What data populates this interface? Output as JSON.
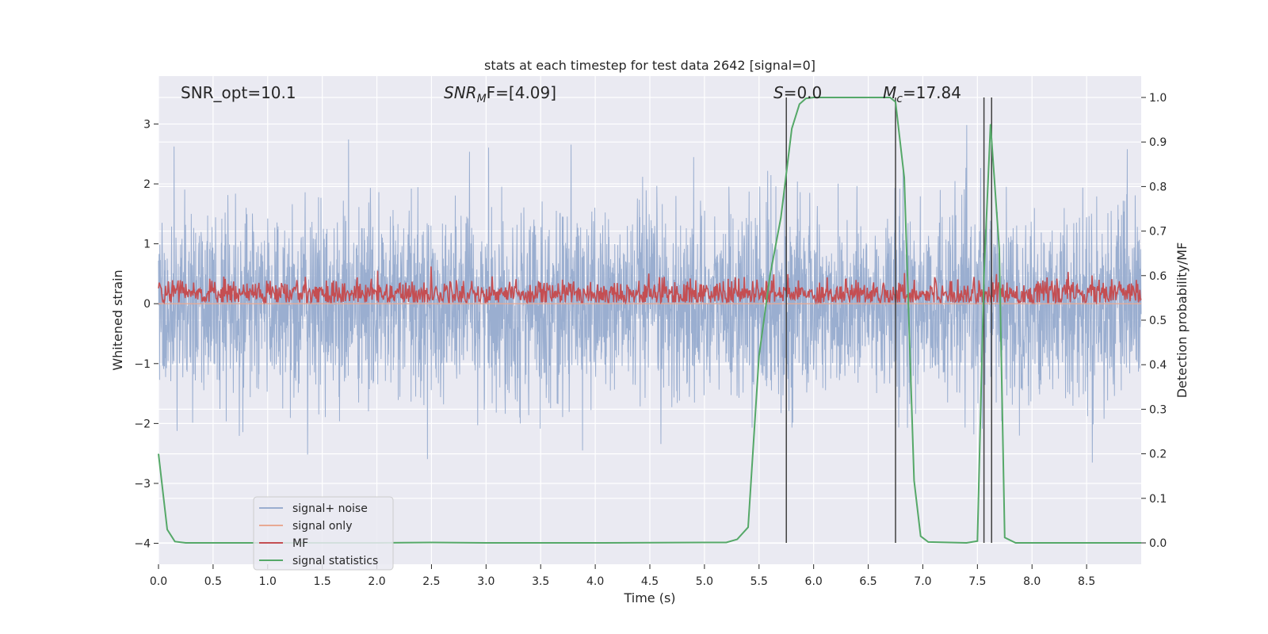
{
  "chart_data": {
    "type": "line",
    "title": "stats at each timestep for test data 2642 [signal=0]",
    "xlabel": "Time (s)",
    "ylabel": "Whitened strain",
    "y2label": "Detection probability/MF",
    "xlim": [
      0.0,
      9.0
    ],
    "ylim": [
      -4.35,
      3.8
    ],
    "y2lim": [
      -0.048,
      1.048
    ],
    "xticks": [
      0.0,
      0.5,
      1.0,
      1.5,
      2.0,
      2.5,
      3.0,
      3.5,
      4.0,
      4.5,
      5.0,
      5.5,
      6.0,
      6.5,
      7.0,
      7.5,
      8.0,
      8.5
    ],
    "xtick_labels": [
      "0.0",
      "0.5",
      "1.0",
      "1.5",
      "2.0",
      "2.5",
      "3.0",
      "3.5",
      "4.0",
      "4.5",
      "5.0",
      "5.5",
      "6.0",
      "6.5",
      "7.0",
      "7.5",
      "8.0",
      "8.5"
    ],
    "yticks": [
      -4,
      -3,
      -2,
      -1,
      0,
      1,
      2,
      3
    ],
    "ytick_labels": [
      "−4",
      "−3",
      "−2",
      "−1",
      "0",
      "1",
      "2",
      "3"
    ],
    "y2ticks": [
      0.0,
      0.1,
      0.2,
      0.3,
      0.4,
      0.5,
      0.6,
      0.7,
      0.8,
      0.9,
      1.0
    ],
    "y2tick_labels": [
      "0.0",
      "0.1",
      "0.2",
      "0.3",
      "0.4",
      "0.5",
      "0.6",
      "0.7",
      "0.8",
      "0.9",
      "1.0"
    ],
    "grid": true,
    "legend_position": "bottom-left",
    "annotations": {
      "snr_opt": "SNR_opt=10.1",
      "snr_mf_label": "SNR",
      "snr_mf_sub": "M",
      "snr_mf_rest": "F=[4.09]",
      "s_label": "S",
      "s_rest": "=0.0",
      "mc_label": "M",
      "mc_sub": "c",
      "mc_rest": "=17.84"
    },
    "series": [
      {
        "name": "signal+ noise",
        "color": "#9aaed0",
        "axis": "left",
        "noise_std": 0.78,
        "noise_range": [
          -3.05,
          3.4
        ]
      },
      {
        "name": "signal only",
        "color": "#e8a993",
        "axis": "left",
        "constant": 0.0
      },
      {
        "name": "MF",
        "color": "#c44e52",
        "axis": "right",
        "mean": 0.56,
        "range": [
          0.54,
          0.65
        ]
      },
      {
        "name": "signal statistics",
        "color": "#55a868",
        "axis": "right",
        "x": [
          0.0,
          0.08,
          0.15,
          0.25,
          0.5,
          1.0,
          2.0,
          2.5,
          3.0,
          4.0,
          5.0,
          5.2,
          5.3,
          5.4,
          5.5,
          5.6,
          5.7,
          5.8,
          5.87,
          5.93,
          6.0,
          6.5,
          6.7,
          6.75,
          6.83,
          6.92,
          6.98,
          7.05,
          7.4,
          7.5,
          7.56,
          7.62,
          7.7,
          7.75,
          7.85,
          9.0
        ],
        "y": [
          0.2,
          0.03,
          0.003,
          0.0,
          0.0,
          0.0,
          0.0,
          0.001,
          0.0,
          0.0,
          0.001,
          0.001,
          0.008,
          0.035,
          0.42,
          0.6,
          0.73,
          0.93,
          0.985,
          0.998,
          1.0,
          1.0,
          1.0,
          0.99,
          0.82,
          0.14,
          0.015,
          0.002,
          0.0,
          0.004,
          0.6,
          0.94,
          0.66,
          0.012,
          0.0,
          0.0
        ]
      }
    ],
    "vlines": [
      5.75,
      6.75,
      7.56,
      7.63
    ],
    "vline_color": "#404040"
  }
}
